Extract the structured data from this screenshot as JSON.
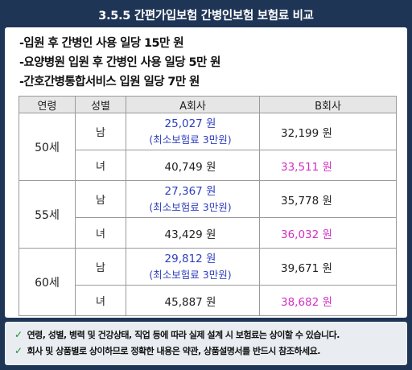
{
  "title": "3.5.5 간편가입보험 간병인보험 보험료 비교",
  "bullets": [
    "-입원 후 간병인 사용 일당 15만 원",
    "-요양병원 입원 후 간병인 사용 일당 5만 원",
    "-간호간병통합서비스 입원 일당 7만 원"
  ],
  "table": {
    "headers": [
      "연령",
      "성별",
      "A회사",
      "B회사"
    ],
    "rows": [
      {
        "age": "50세",
        "male": {
          "gender": "남",
          "a": "25,027 원",
          "a_note": "(최소보험료 3만원)",
          "b": "32,199 원"
        },
        "female": {
          "gender": "녀",
          "a": "40,749 원",
          "b": "33,511 원"
        }
      },
      {
        "age": "55세",
        "male": {
          "gender": "남",
          "a": "27,367 원",
          "a_note": "(최소보험료 3만원)",
          "b": "35,778 원"
        },
        "female": {
          "gender": "녀",
          "a": "43,429 원",
          "b": "36,032 원"
        }
      },
      {
        "age": "60세",
        "male": {
          "gender": "남",
          "a": "29,812 원",
          "a_note": "(최소보험료 3만원)",
          "b": "39,671 원"
        },
        "female": {
          "gender": "녀",
          "a": "45,887 원",
          "b": "38,682 원"
        }
      }
    ]
  },
  "notes": [
    "연령, 성별, 병력 및 건강상태, 직업 등에 따라 실제 설계 시 보험료는 상이할 수 있습니다.",
    "회사 및 상품별로 상이하므로 정확한 내용은 약관, 상품설명서를 반드시 참조하세요."
  ],
  "icons": {
    "note_bullet": "check-icon"
  },
  "colors": {
    "background": "#1f3556",
    "a_min_price": "#2e3fbf",
    "b_lower_price": "#d42fc4"
  }
}
